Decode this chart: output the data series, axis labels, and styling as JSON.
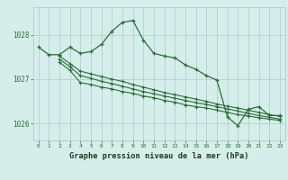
{
  "xlabel": "Graphe pression niveau de la mer (hPa)",
  "bg_color": "#d5eeea",
  "xlabel_bg": "#4a7a5a",
  "grid_color": "#a8ccc8",
  "line_color": "#2d6b3a",
  "ylim": [
    1025.62,
    1028.62
  ],
  "xlim_min": -0.5,
  "xlim_max": 23.5,
  "yticks": [
    1026,
    1027,
    1028
  ],
  "xticks": [
    0,
    1,
    2,
    3,
    4,
    5,
    6,
    7,
    8,
    9,
    10,
    11,
    12,
    13,
    14,
    15,
    16,
    17,
    18,
    19,
    20,
    21,
    22,
    23
  ],
  "series1_x": [
    0,
    1,
    2,
    3,
    4,
    5,
    6,
    7,
    8,
    9,
    10,
    11,
    12,
    13,
    14,
    15,
    16,
    17,
    18,
    19,
    20,
    21,
    22,
    23
  ],
  "series1_y": [
    1027.72,
    1027.55,
    1027.55,
    1027.72,
    1027.58,
    1027.62,
    1027.78,
    1028.08,
    1028.28,
    1028.32,
    1027.88,
    1027.58,
    1027.52,
    1027.48,
    1027.32,
    1027.22,
    1027.08,
    1026.98,
    1026.15,
    1025.95,
    1026.32,
    1026.38,
    1026.18,
    1026.18
  ],
  "series2_x": [
    2,
    3,
    4,
    5,
    6,
    7,
    8,
    9,
    10,
    11,
    12,
    13,
    14,
    15,
    16,
    17,
    18,
    19,
    20,
    21,
    22,
    23
  ],
  "series2_y": [
    1027.38,
    1027.2,
    1026.92,
    1026.88,
    1026.82,
    1026.78,
    1026.72,
    1026.68,
    1026.62,
    1026.58,
    1026.52,
    1026.48,
    1026.42,
    1026.38,
    1026.35,
    1026.3,
    1026.25,
    1026.2,
    1026.17,
    1026.13,
    1026.1,
    1026.07
  ],
  "series3_x": [
    2,
    3,
    4,
    5,
    6,
    7,
    8,
    9,
    10,
    11,
    12,
    13,
    14,
    15,
    16,
    17,
    18,
    19,
    20,
    21,
    22,
    23
  ],
  "series3_y": [
    1027.45,
    1027.28,
    1027.08,
    1027.02,
    1026.95,
    1026.9,
    1026.84,
    1026.78,
    1026.72,
    1026.67,
    1026.62,
    1026.57,
    1026.52,
    1026.47,
    1026.43,
    1026.38,
    1026.33,
    1026.28,
    1026.23,
    1026.18,
    1026.14,
    1026.1
  ],
  "series4_x": [
    2,
    3,
    4,
    5,
    6,
    7,
    8,
    9,
    10,
    11,
    12,
    13,
    14,
    15,
    16,
    17,
    18,
    19,
    20,
    21,
    22,
    23
  ],
  "series4_y": [
    1027.52,
    1027.35,
    1027.18,
    1027.12,
    1027.06,
    1027.0,
    1026.95,
    1026.88,
    1026.82,
    1026.76,
    1026.7,
    1026.65,
    1026.6,
    1026.55,
    1026.5,
    1026.44,
    1026.39,
    1026.35,
    1026.3,
    1026.25,
    1026.2,
    1026.16
  ]
}
